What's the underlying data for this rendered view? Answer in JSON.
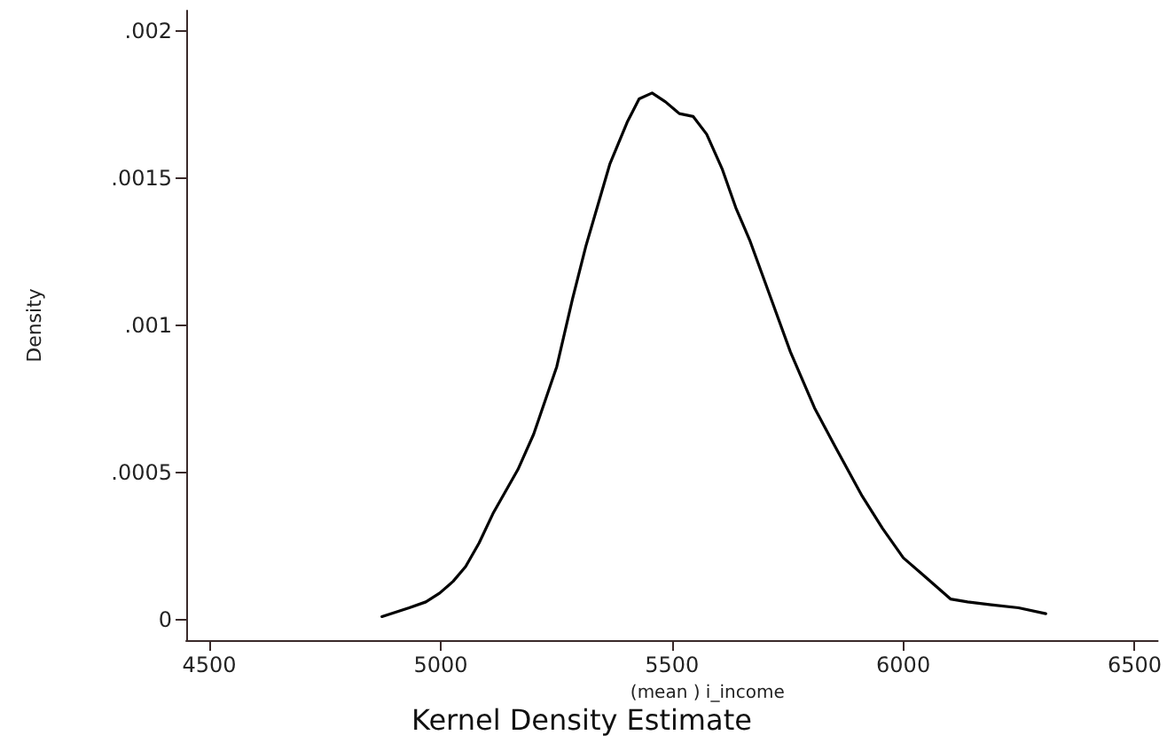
{
  "chart_data": {
    "type": "line",
    "title": "Kernel Density Estimate",
    "xlabel": "(mean ) i_income",
    "ylabel": "Density",
    "x": [
      4873,
      4932,
      4968,
      4998,
      5027,
      5054,
      5083,
      5113,
      5167,
      5201,
      5251,
      5285,
      5314,
      5366,
      5403,
      5429,
      5457,
      5486,
      5516,
      5546,
      5575,
      5609,
      5638,
      5668,
      5712,
      5756,
      5808,
      5852,
      5911,
      5955,
      6000,
      6044,
      6102,
      6139,
      6190,
      6249,
      6308
    ],
    "series": [
      {
        "color": "#000000",
        "values": [
          1e-05,
          4e-05,
          6e-05,
          9e-05,
          0.00013,
          0.00018,
          0.00026,
          0.00036,
          0.00051,
          0.00063,
          0.00086,
          0.00109,
          0.00127,
          0.00155,
          0.00169,
          0.00177,
          0.00179,
          0.00176,
          0.00172,
          0.00171,
          0.00165,
          0.00153,
          0.0014,
          0.00129,
          0.0011,
          0.00091,
          0.00072,
          0.00059,
          0.00042,
          0.00031,
          0.00021,
          0.00015,
          7e-05,
          6e-05,
          5e-05,
          4e-05,
          2e-05
        ]
      }
    ],
    "xlim": [
      4450,
      6550
    ],
    "xticks": [
      4500,
      5000,
      5500,
      6000,
      6500
    ],
    "ylim": [
      -7e-05,
      0.00207
    ],
    "yticks": [
      0,
      {
        "value": 0.0005,
        "label": ".0005"
      },
      {
        "value": 0.001,
        "label": ".001"
      },
      {
        "value": 0.0015,
        "label": ".0015"
      },
      {
        "value": 0.002,
        "label": ".002"
      }
    ],
    "grid": false,
    "marker": "none",
    "line_style": "solid"
  }
}
